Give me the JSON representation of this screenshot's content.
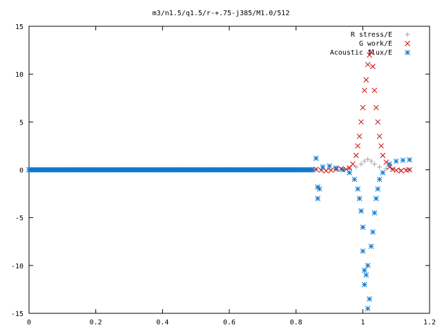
{
  "chart_data": {
    "type": "scatter",
    "title": "m3/n1.5/q1.5/r-+.75-j385/M1.0/512",
    "xlabel": "",
    "ylabel": "",
    "xlim": [
      0,
      1.2
    ],
    "ylim": [
      -15,
      15
    ],
    "x_ticks": [
      0,
      0.2,
      0.4,
      0.6,
      0.8,
      1,
      1.2
    ],
    "x_tick_labels": [
      "0",
      "0.2",
      "0.4",
      "0.6",
      "0.8",
      "1",
      "1.2"
    ],
    "y_ticks": [
      -15,
      -10,
      -5,
      0,
      5,
      10,
      15
    ],
    "y_tick_labels": [
      "-15",
      "-10",
      "-5",
      "0",
      "5",
      "10",
      "15"
    ],
    "grid": false,
    "legend_position": "top-right",
    "series": [
      {
        "name": "R stress/E",
        "marker": "plus",
        "color": "#a0a0a0",
        "points": [
          [
            0.0,
            0
          ],
          [
            0.1,
            0
          ],
          [
            0.2,
            0
          ],
          [
            0.3,
            0
          ],
          [
            0.4,
            0
          ],
          [
            0.5,
            0
          ],
          [
            0.6,
            0
          ],
          [
            0.7,
            0
          ],
          [
            0.8,
            0
          ],
          [
            0.86,
            0.02
          ],
          [
            0.88,
            0.03
          ],
          [
            0.9,
            0.04
          ],
          [
            0.92,
            0.06
          ],
          [
            0.94,
            0.08
          ],
          [
            0.96,
            0.12
          ],
          [
            0.98,
            0.3
          ],
          [
            0.995,
            0.6
          ],
          [
            1.005,
            0.9
          ],
          [
            1.015,
            1.1
          ],
          [
            1.025,
            0.9
          ],
          [
            1.035,
            0.6
          ],
          [
            1.05,
            0.3
          ],
          [
            1.07,
            0.12
          ],
          [
            1.09,
            0.06
          ],
          [
            1.11,
            0.04
          ],
          [
            1.13,
            0.03
          ],
          [
            1.14,
            0.02
          ]
        ]
      },
      {
        "name": "G work/E",
        "marker": "cross",
        "color": "#cc0000",
        "points": [
          [
            0.86,
            0.05
          ],
          [
            0.875,
            -0.05
          ],
          [
            0.89,
            -0.1
          ],
          [
            0.905,
            -0.05
          ],
          [
            0.92,
            0.05
          ],
          [
            0.935,
            0.1
          ],
          [
            0.95,
            0.05
          ],
          [
            0.96,
            0.2
          ],
          [
            0.97,
            0.6
          ],
          [
            0.98,
            1.5
          ],
          [
            0.985,
            2.5
          ],
          [
            0.99,
            3.5
          ],
          [
            0.995,
            5.0
          ],
          [
            1.0,
            6.5
          ],
          [
            1.005,
            8.3
          ],
          [
            1.01,
            9.4
          ],
          [
            1.015,
            11.0
          ],
          [
            1.02,
            12.0
          ],
          [
            1.025,
            12.3
          ],
          [
            1.03,
            10.8
          ],
          [
            1.035,
            8.3
          ],
          [
            1.04,
            6.5
          ],
          [
            1.045,
            5.0
          ],
          [
            1.05,
            3.5
          ],
          [
            1.055,
            2.5
          ],
          [
            1.06,
            1.5
          ],
          [
            1.07,
            0.8
          ],
          [
            1.08,
            0.3
          ],
          [
            1.09,
            0.05
          ],
          [
            1.1,
            -0.05
          ],
          [
            1.115,
            -0.1
          ],
          [
            1.13,
            -0.05
          ],
          [
            1.14,
            0.0
          ]
        ]
      },
      {
        "name": "Acoustic flux/E",
        "marker": "star",
        "color": "#0a78d0",
        "points": [
          [
            0.0,
            0
          ],
          [
            0.05,
            0
          ],
          [
            0.1,
            0
          ],
          [
            0.15,
            0
          ],
          [
            0.2,
            0
          ],
          [
            0.25,
            0
          ],
          [
            0.3,
            0
          ],
          [
            0.35,
            0
          ],
          [
            0.4,
            0
          ],
          [
            0.45,
            0
          ],
          [
            0.5,
            0
          ],
          [
            0.55,
            0
          ],
          [
            0.6,
            0
          ],
          [
            0.65,
            0
          ],
          [
            0.7,
            0
          ],
          [
            0.75,
            0
          ],
          [
            0.8,
            0
          ],
          [
            0.85,
            0
          ],
          [
            0.86,
            1.2
          ],
          [
            0.865,
            -1.8
          ],
          [
            0.865,
            -3.0
          ],
          [
            0.87,
            -2.0
          ],
          [
            0.88,
            0.3
          ],
          [
            0.9,
            0.4
          ],
          [
            0.92,
            0.2
          ],
          [
            0.94,
            0.0
          ],
          [
            0.96,
            -0.3
          ],
          [
            0.975,
            -1.0
          ],
          [
            0.985,
            -2.0
          ],
          [
            0.99,
            -3.0
          ],
          [
            0.995,
            -4.3
          ],
          [
            1.0,
            -6.0
          ],
          [
            1.0,
            -8.5
          ],
          [
            1.005,
            -10.5
          ],
          [
            1.005,
            -12.0
          ],
          [
            1.01,
            -11.0
          ],
          [
            1.015,
            -10.0
          ],
          [
            1.015,
            -14.5
          ],
          [
            1.02,
            -13.5
          ],
          [
            1.025,
            -8.0
          ],
          [
            1.03,
            -6.5
          ],
          [
            1.035,
            -4.5
          ],
          [
            1.04,
            -3.0
          ],
          [
            1.045,
            -2.0
          ],
          [
            1.05,
            -1.0
          ],
          [
            1.06,
            -0.3
          ],
          [
            1.08,
            0.6
          ],
          [
            1.1,
            0.9
          ],
          [
            1.12,
            1.0
          ],
          [
            1.14,
            1.05
          ]
        ]
      }
    ]
  }
}
